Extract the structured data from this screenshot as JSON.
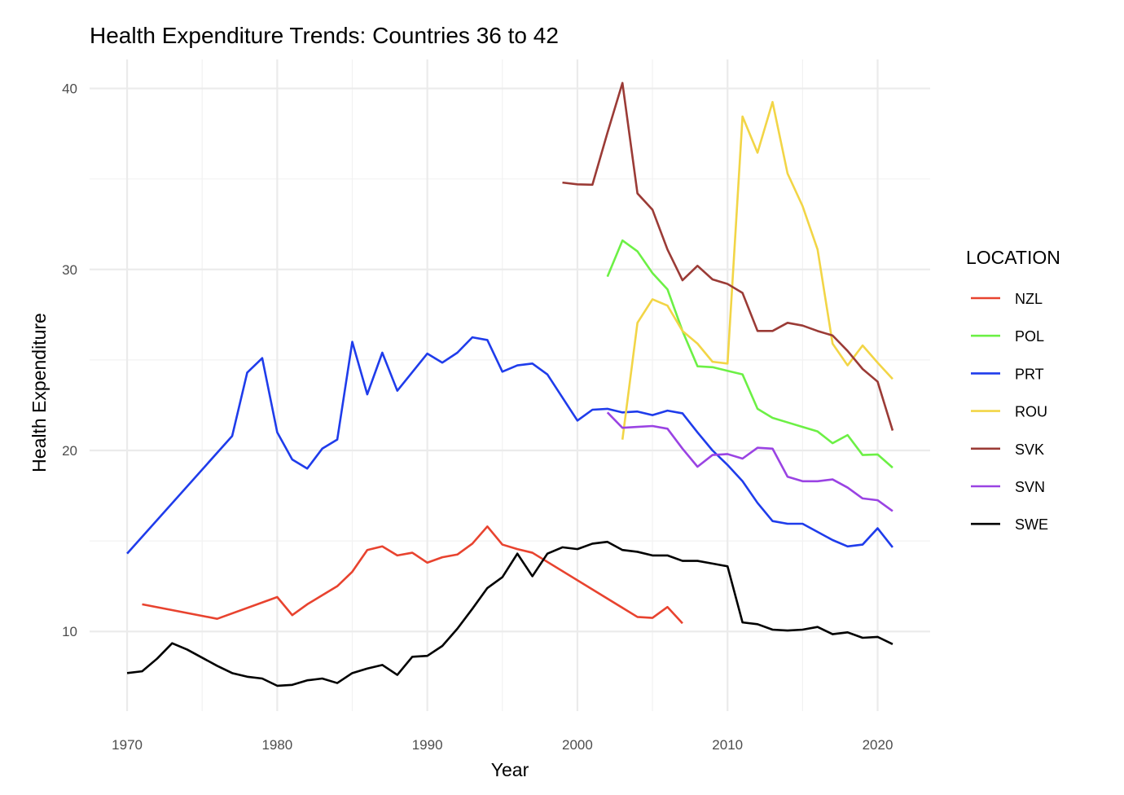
{
  "chart_data": {
    "type": "line",
    "title": "Health Expenditure Trends: Countries 36 to 42",
    "xlabel": "Year",
    "ylabel": "Health Expenditure",
    "xlim": [
      1967.5,
      2023.5
    ],
    "ylim": [
      5.6,
      41.6
    ],
    "x_ticks": [
      1970,
      1980,
      1990,
      2000,
      2010,
      2020
    ],
    "y_ticks": [
      10,
      20,
      30,
      40
    ],
    "grid": true,
    "legend": {
      "title": "LOCATION",
      "position": "right"
    },
    "series": [
      {
        "name": "NZL",
        "color": "#E8432F",
        "points": [
          [
            1971,
            11.5
          ],
          [
            1976,
            10.7
          ],
          [
            1980,
            11.9
          ],
          [
            1981,
            10.9
          ],
          [
            1982,
            11.5
          ],
          [
            1983,
            12.0
          ],
          [
            1984,
            12.5
          ],
          [
            1985,
            13.3
          ],
          [
            1986,
            14.5
          ],
          [
            1987,
            14.7
          ],
          [
            1988,
            14.2
          ],
          [
            1989,
            14.35
          ],
          [
            1990,
            13.8
          ],
          [
            1991,
            14.1
          ],
          [
            1992,
            14.25
          ],
          [
            1993,
            14.85
          ],
          [
            1994,
            15.8
          ],
          [
            1995,
            14.8
          ],
          [
            1996,
            14.55
          ],
          [
            1997,
            14.35
          ],
          [
            2004,
            10.8
          ],
          [
            2005,
            10.75
          ],
          [
            2006,
            11.35
          ],
          [
            2007,
            10.45
          ]
        ]
      },
      {
        "name": "POL",
        "color": "#6CF045",
        "points": [
          [
            2002,
            29.6
          ],
          [
            2003,
            31.6
          ],
          [
            2004,
            31.0
          ],
          [
            2005,
            29.8
          ],
          [
            2006,
            28.9
          ],
          [
            2007,
            26.6
          ],
          [
            2008,
            24.65
          ],
          [
            2009,
            24.6
          ],
          [
            2010,
            24.4
          ],
          [
            2011,
            24.2
          ],
          [
            2012,
            22.3
          ],
          [
            2013,
            21.8
          ],
          [
            2014,
            21.55
          ],
          [
            2015,
            21.3
          ],
          [
            2016,
            21.05
          ],
          [
            2017,
            20.4
          ],
          [
            2018,
            20.85
          ],
          [
            2019,
            19.75
          ],
          [
            2020,
            19.78
          ],
          [
            2021,
            19.05
          ]
        ]
      },
      {
        "name": "PRT",
        "color": "#1F3CEB",
        "points": [
          [
            1970,
            14.3
          ],
          [
            1977,
            20.8
          ],
          [
            1978,
            24.3
          ],
          [
            1979,
            25.1
          ],
          [
            1980,
            21.0
          ],
          [
            1981,
            19.5
          ],
          [
            1982,
            19.0
          ],
          [
            1983,
            20.1
          ],
          [
            1984,
            20.6
          ],
          [
            1985,
            26.0
          ],
          [
            1986,
            23.1
          ],
          [
            1987,
            25.4
          ],
          [
            1988,
            23.3
          ],
          [
            1990,
            25.35
          ],
          [
            1991,
            24.85
          ],
          [
            1992,
            25.4
          ],
          [
            1993,
            26.25
          ],
          [
            1994,
            26.1
          ],
          [
            1995,
            24.35
          ],
          [
            1996,
            24.7
          ],
          [
            1997,
            24.8
          ],
          [
            1998,
            24.2
          ],
          [
            2000,
            21.65
          ],
          [
            2001,
            22.25
          ],
          [
            2002,
            22.3
          ],
          [
            2003,
            22.1
          ],
          [
            2004,
            22.15
          ],
          [
            2005,
            21.95
          ],
          [
            2006,
            22.2
          ],
          [
            2007,
            22.05
          ],
          [
            2008,
            21.0
          ],
          [
            2009,
            20.0
          ],
          [
            2010,
            19.2
          ],
          [
            2011,
            18.3
          ],
          [
            2012,
            17.1
          ],
          [
            2013,
            16.1
          ],
          [
            2014,
            15.95
          ],
          [
            2015,
            15.95
          ],
          [
            2016,
            15.5
          ],
          [
            2017,
            15.05
          ],
          [
            2018,
            14.7
          ],
          [
            2019,
            14.8
          ],
          [
            2020,
            15.7
          ],
          [
            2021,
            14.65
          ]
        ]
      },
      {
        "name": "ROU",
        "color": "#F2D546",
        "points": [
          [
            2003,
            20.6
          ],
          [
            2004,
            27.05
          ],
          [
            2005,
            28.35
          ],
          [
            2006,
            28.0
          ],
          [
            2007,
            26.6
          ],
          [
            2008,
            25.9
          ],
          [
            2009,
            24.9
          ],
          [
            2010,
            24.8
          ],
          [
            2011,
            38.45
          ],
          [
            2012,
            36.45
          ],
          [
            2013,
            39.25
          ],
          [
            2014,
            35.3
          ],
          [
            2015,
            33.5
          ],
          [
            2016,
            31.1
          ],
          [
            2017,
            25.9
          ],
          [
            2018,
            24.7
          ],
          [
            2019,
            25.8
          ],
          [
            2020,
            24.85
          ],
          [
            2021,
            23.95
          ]
        ]
      },
      {
        "name": "SVK",
        "color": "#9B3B36",
        "points": [
          [
            1999,
            34.8
          ],
          [
            2000,
            34.7
          ],
          [
            2001,
            34.68
          ],
          [
            2002,
            37.55
          ],
          [
            2003,
            40.3
          ],
          [
            2004,
            34.2
          ],
          [
            2005,
            33.3
          ],
          [
            2006,
            31.1
          ],
          [
            2007,
            29.4
          ],
          [
            2008,
            30.2
          ],
          [
            2009,
            29.45
          ],
          [
            2010,
            29.2
          ],
          [
            2011,
            28.7
          ],
          [
            2012,
            26.6
          ],
          [
            2013,
            26.6
          ],
          [
            2014,
            27.05
          ],
          [
            2015,
            26.9
          ],
          [
            2016,
            26.6
          ],
          [
            2017,
            26.35
          ],
          [
            2018,
            25.5
          ],
          [
            2019,
            24.5
          ],
          [
            2020,
            23.8
          ],
          [
            2021,
            21.1
          ]
        ]
      },
      {
        "name": "SVN",
        "color": "#9A43E3",
        "points": [
          [
            2002,
            22.1
          ],
          [
            2003,
            21.25
          ],
          [
            2004,
            21.3
          ],
          [
            2005,
            21.35
          ],
          [
            2006,
            21.2
          ],
          [
            2007,
            20.1
          ],
          [
            2008,
            19.1
          ],
          [
            2009,
            19.75
          ],
          [
            2010,
            19.8
          ],
          [
            2011,
            19.55
          ],
          [
            2012,
            20.15
          ],
          [
            2013,
            20.1
          ],
          [
            2014,
            18.55
          ],
          [
            2015,
            18.3
          ],
          [
            2016,
            18.3
          ],
          [
            2017,
            18.4
          ],
          [
            2018,
            17.95
          ],
          [
            2019,
            17.35
          ],
          [
            2020,
            17.25
          ],
          [
            2021,
            16.65
          ]
        ]
      },
      {
        "name": "SWE",
        "color": "#000000",
        "points": [
          [
            1970,
            7.7
          ],
          [
            1971,
            7.8
          ],
          [
            1972,
            8.5
          ],
          [
            1973,
            9.35
          ],
          [
            1974,
            9.0
          ],
          [
            1975,
            8.55
          ],
          [
            1976,
            8.1
          ],
          [
            1977,
            7.7
          ],
          [
            1978,
            7.5
          ],
          [
            1979,
            7.4
          ],
          [
            1980,
            7.0
          ],
          [
            1981,
            7.05
          ],
          [
            1982,
            7.3
          ],
          [
            1983,
            7.4
          ],
          [
            1984,
            7.15
          ],
          [
            1985,
            7.7
          ],
          [
            1986,
            7.95
          ],
          [
            1987,
            8.15
          ],
          [
            1988,
            7.6
          ],
          [
            1989,
            8.6
          ],
          [
            1990,
            8.65
          ],
          [
            1991,
            9.2
          ],
          [
            1992,
            10.15
          ],
          [
            1993,
            11.25
          ],
          [
            1994,
            12.4
          ],
          [
            1995,
            13.0
          ],
          [
            1996,
            14.3
          ],
          [
            1997,
            13.05
          ],
          [
            1998,
            14.3
          ],
          [
            1999,
            14.65
          ],
          [
            2000,
            14.55
          ],
          [
            2001,
            14.85
          ],
          [
            2002,
            14.95
          ],
          [
            2003,
            14.5
          ],
          [
            2004,
            14.4
          ],
          [
            2005,
            14.2
          ],
          [
            2006,
            14.2
          ],
          [
            2007,
            13.9
          ],
          [
            2008,
            13.9
          ],
          [
            2009,
            13.75
          ],
          [
            2010,
            13.6
          ],
          [
            2011,
            10.5
          ],
          [
            2012,
            10.4
          ],
          [
            2013,
            10.1
          ],
          [
            2014,
            10.05
          ],
          [
            2015,
            10.1
          ],
          [
            2016,
            10.25
          ],
          [
            2017,
            9.85
          ],
          [
            2018,
            9.95
          ],
          [
            2019,
            9.65
          ],
          [
            2020,
            9.7
          ],
          [
            2021,
            9.3
          ]
        ]
      }
    ]
  }
}
